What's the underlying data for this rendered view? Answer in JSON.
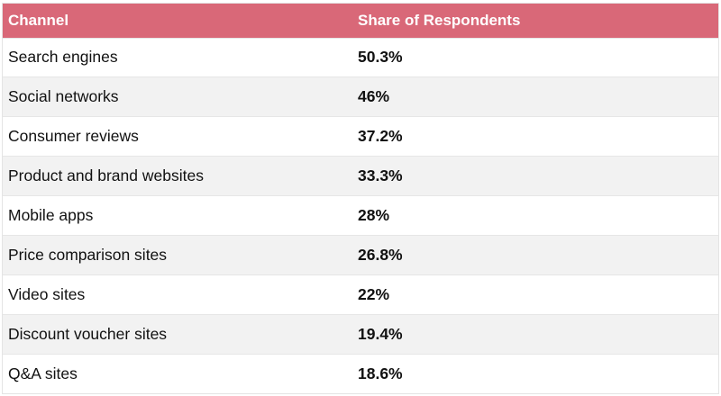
{
  "chart_data": {
    "type": "table",
    "columns": [
      "Channel",
      "Share of Respondents"
    ],
    "rows": [
      {
        "channel": "Search engines",
        "share": "50.3%"
      },
      {
        "channel": "Social networks",
        "share": "46%"
      },
      {
        "channel": "Consumer reviews",
        "share": "37.2%"
      },
      {
        "channel": "Product and brand websites",
        "share": "33.3%"
      },
      {
        "channel": "Mobile apps",
        "share": "28%"
      },
      {
        "channel": "Price comparison sites",
        "share": "26.8%"
      },
      {
        "channel": "Video sites",
        "share": "22%"
      },
      {
        "channel": "Discount voucher sites",
        "share": "19.4%"
      },
      {
        "channel": "Q&A sites",
        "share": "18.6%"
      }
    ]
  },
  "colors": {
    "header_bg": "#d96878",
    "header_text": "#ffffff",
    "row_alt": "#f2f2f2"
  }
}
